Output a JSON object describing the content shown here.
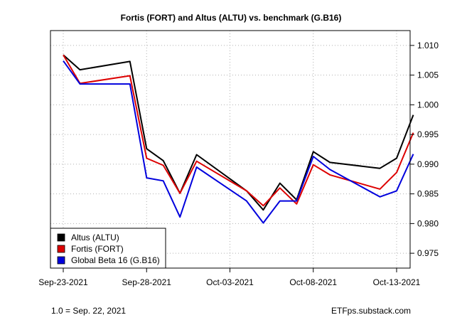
{
  "colors": {
    "altu": "#000000",
    "fort": "#dd0000",
    "gb16": "#0000dd",
    "grid": "#b0b0b0"
  },
  "footer": {
    "left": "1.0 = Sep. 22, 2021",
    "right": "ETFps.substack.com"
  },
  "chart_data": {
    "type": "line",
    "title": "Fortis (FORT) and Altus (ALTU) vs. benchmark (G.B16)",
    "xlabel": "",
    "ylabel": "",
    "x_range": [
      "2021-09-23",
      "2021-10-13"
    ],
    "ylim": [
      0.9725,
      1.0125
    ],
    "grid": true,
    "legend_position": "bottom-left",
    "x_ticks": [
      {
        "date": "2021-09-23",
        "label": "Sep-23-2021"
      },
      {
        "date": "2021-09-28",
        "label": "Sep-28-2021"
      },
      {
        "date": "2021-10-03",
        "label": "Oct-03-2021"
      },
      {
        "date": "2021-10-08",
        "label": "Oct-08-2021"
      },
      {
        "date": "2021-10-13",
        "label": "Oct-13-2021"
      }
    ],
    "y_ticks": [
      {
        "value": 1.01,
        "label": "1.010"
      },
      {
        "value": 1.005,
        "label": "1.005"
      },
      {
        "value": 1.0,
        "label": "1.000"
      },
      {
        "value": 0.995,
        "label": "0.995"
      },
      {
        "value": 0.99,
        "label": "0.990"
      },
      {
        "value": 0.985,
        "label": "0.985"
      },
      {
        "value": 0.98,
        "label": "0.980"
      },
      {
        "value": 0.975,
        "label": "0.975"
      }
    ],
    "series": [
      {
        "name": "Altus (ALTU)",
        "color": "#000000",
        "points": [
          [
            "2021-09-23",
            1.0084
          ],
          [
            "2021-09-24",
            1.0059
          ],
          [
            "2021-09-27",
            1.0073
          ],
          [
            "2021-09-28",
            0.9926
          ],
          [
            "2021-09-29",
            0.9906
          ],
          [
            "2021-09-30",
            0.9851
          ],
          [
            "2021-10-01",
            0.9916
          ],
          [
            "2021-10-04",
            0.9855
          ],
          [
            "2021-10-05",
            0.9823
          ],
          [
            "2021-10-06",
            0.9868
          ],
          [
            "2021-10-07",
            0.984
          ],
          [
            "2021-10-08",
            0.9921
          ],
          [
            "2021-10-09",
            0.9903
          ],
          [
            "2021-10-12",
            0.9893
          ],
          [
            "2021-10-13",
            0.991
          ],
          [
            "2021-10-14",
            0.9983
          ]
        ]
      },
      {
        "name": "Fortis (FORT)",
        "color": "#dd0000",
        "points": [
          [
            "2021-09-23",
            1.0084
          ],
          [
            "2021-09-24",
            1.0036
          ],
          [
            "2021-09-27",
            1.0049
          ],
          [
            "2021-09-28",
            0.991
          ],
          [
            "2021-09-29",
            0.9898
          ],
          [
            "2021-09-30",
            0.9851
          ],
          [
            "2021-10-01",
            0.9905
          ],
          [
            "2021-10-04",
            0.9855
          ],
          [
            "2021-10-05",
            0.983
          ],
          [
            "2021-10-06",
            0.986
          ],
          [
            "2021-10-07",
            0.9833
          ],
          [
            "2021-10-08",
            0.9899
          ],
          [
            "2021-10-09",
            0.9882
          ],
          [
            "2021-10-12",
            0.9858
          ],
          [
            "2021-10-13",
            0.9886
          ],
          [
            "2021-10-14",
            0.9953
          ]
        ]
      },
      {
        "name": "Global Beta 16 (G.B16)",
        "color": "#0000dd",
        "points": [
          [
            "2021-09-23",
            1.0074
          ],
          [
            "2021-09-24",
            1.0035
          ],
          [
            "2021-09-27",
            1.0035
          ],
          [
            "2021-09-28",
            0.9877
          ],
          [
            "2021-09-29",
            0.9872
          ],
          [
            "2021-09-30",
            0.9811
          ],
          [
            "2021-10-01",
            0.9895
          ],
          [
            "2021-10-04",
            0.9838
          ],
          [
            "2021-10-05",
            0.9801
          ],
          [
            "2021-10-06",
            0.9838
          ],
          [
            "2021-10-07",
            0.9838
          ],
          [
            "2021-10-08",
            0.9913
          ],
          [
            "2021-10-09",
            0.9891
          ],
          [
            "2021-10-12",
            0.9845
          ],
          [
            "2021-10-13",
            0.9855
          ],
          [
            "2021-10-14",
            0.9917
          ]
        ]
      }
    ]
  }
}
